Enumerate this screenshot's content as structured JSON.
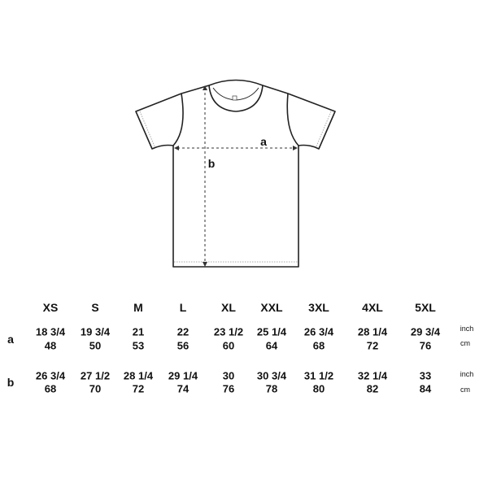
{
  "diagram": {
    "measure_labels": {
      "width": "a",
      "length": "b"
    }
  },
  "table": {
    "sizes": [
      "XS",
      "S",
      "M",
      "L",
      "XL",
      "XXL",
      "3XL",
      "4XL",
      "5XL"
    ],
    "rows": [
      {
        "label": "a",
        "inch": [
          "18 3/4",
          "19 3/4",
          "21",
          "22",
          "23 1/2",
          "25 1/4",
          "26 3/4",
          "28 1/4",
          "29 3/4"
        ],
        "cm": [
          "48",
          "50",
          "53",
          "56",
          "60",
          "64",
          "68",
          "72",
          "76"
        ]
      },
      {
        "label": "b",
        "inch": [
          "26 3/4",
          "27 1/2",
          "28 1/4",
          "29 1/4",
          "30",
          "30 3/4",
          "31 1/2",
          "32 1/4",
          "33"
        ],
        "cm": [
          "68",
          "70",
          "72",
          "74",
          "76",
          "78",
          "80",
          "82",
          "84"
        ]
      }
    ],
    "units": {
      "inch": "inch",
      "cm": "cm"
    }
  }
}
